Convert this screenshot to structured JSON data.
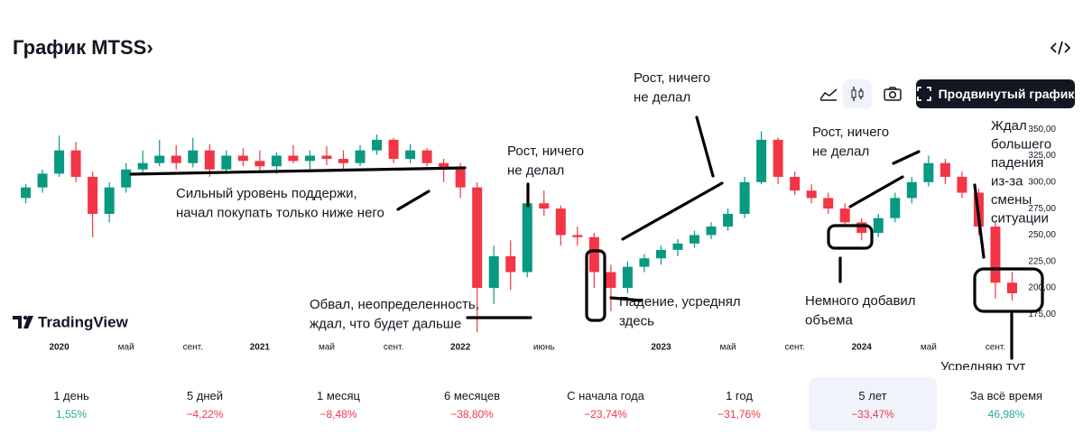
{
  "header": {
    "title": "График MTSS›",
    "button": "Продвинутый график"
  },
  "logo": "TradingView",
  "chart_data": {
    "type": "candlestick",
    "up_color": "#089981",
    "down_color": "#f23645",
    "x": [
      "2019-11",
      "2019-12",
      "2020-01",
      "2020-02",
      "2020-03",
      "2020-04",
      "2020-05",
      "2020-06",
      "2020-07",
      "2020-08",
      "2020-09",
      "2020-10",
      "2020-11",
      "2020-12",
      "2021-01",
      "2021-02",
      "2021-03",
      "2021-04",
      "2021-05",
      "2021-06",
      "2021-07",
      "2021-08",
      "2021-09",
      "2021-10",
      "2021-11",
      "2021-12",
      "2022-01",
      "2022-02",
      "2022-03",
      "2022-04",
      "2022-05",
      "2022-06",
      "2022-07",
      "2022-08",
      "2022-09",
      "2022-10",
      "2022-11",
      "2022-12",
      "2023-01",
      "2023-02",
      "2023-03",
      "2023-04",
      "2023-05",
      "2023-06",
      "2023-07",
      "2023-08",
      "2023-09",
      "2023-10",
      "2023-11",
      "2023-12",
      "2024-01",
      "2024-02",
      "2024-03",
      "2024-04",
      "2024-05",
      "2024-06",
      "2024-07",
      "2024-08",
      "2024-09",
      "2024-10"
    ],
    "open": [
      285,
      295,
      308,
      330,
      305,
      270,
      295,
      312,
      318,
      325,
      318,
      330,
      312,
      325,
      320,
      315,
      325,
      320,
      325,
      322,
      318,
      330,
      340,
      322,
      330,
      318,
      312,
      295,
      200,
      230,
      215,
      280,
      275,
      250,
      248,
      215,
      200,
      220,
      228,
      236,
      242,
      250,
      258,
      270,
      300,
      340,
      305,
      292,
      285,
      275,
      262,
      252,
      266,
      285,
      300,
      318,
      305,
      290,
      258,
      205
    ],
    "high": [
      298,
      312,
      344,
      338,
      310,
      300,
      318,
      330,
      340,
      335,
      342,
      336,
      330,
      332,
      330,
      328,
      335,
      330,
      334,
      330,
      335,
      345,
      342,
      336,
      332,
      322,
      318,
      300,
      240,
      245,
      290,
      292,
      278,
      258,
      252,
      222,
      225,
      232,
      240,
      246,
      254,
      262,
      275,
      305,
      348,
      342,
      310,
      298,
      290,
      280,
      266,
      270,
      290,
      305,
      325,
      322,
      310,
      294,
      262,
      215
    ],
    "low": [
      280,
      290,
      305,
      300,
      248,
      262,
      290,
      308,
      315,
      312,
      314,
      305,
      308,
      315,
      310,
      308,
      318,
      312,
      316,
      312,
      315,
      326,
      318,
      318,
      315,
      300,
      285,
      158,
      185,
      198,
      210,
      268,
      240,
      240,
      200,
      178,
      195,
      215,
      222,
      230,
      238,
      246,
      254,
      266,
      298,
      298,
      288,
      280,
      270,
      258,
      245,
      248,
      262,
      280,
      296,
      298,
      285,
      250,
      190,
      188
    ],
    "close": [
      295,
      308,
      330,
      305,
      270,
      295,
      312,
      318,
      325,
      318,
      330,
      312,
      325,
      320,
      315,
      325,
      320,
      325,
      322,
      318,
      330,
      340,
      322,
      330,
      318,
      312,
      295,
      200,
      230,
      215,
      280,
      275,
      250,
      248,
      215,
      200,
      220,
      228,
      236,
      242,
      250,
      258,
      270,
      300,
      340,
      305,
      292,
      285,
      275,
      262,
      252,
      266,
      285,
      300,
      318,
      305,
      290,
      258,
      205,
      195
    ],
    "xlim": [
      "2019-10",
      "2024-11"
    ],
    "xticks": [
      {
        "value": "2020-01",
        "label": "2020"
      },
      {
        "value": "2020-05",
        "label": "май"
      },
      {
        "value": "2020-09",
        "label": "сент."
      },
      {
        "value": "2021-01",
        "label": "2021"
      },
      {
        "value": "2021-05",
        "label": "май"
      },
      {
        "value": "2021-09",
        "label": "сент."
      },
      {
        "value": "2022-01",
        "label": "2022"
      },
      {
        "value": "2022-06",
        "label": "июнь"
      },
      {
        "value": "2023-01",
        "label": "2023"
      },
      {
        "value": "2023-05",
        "label": "май"
      },
      {
        "value": "2023-09",
        "label": "сент."
      },
      {
        "value": "2024-01",
        "label": "2024"
      },
      {
        "value": "2024-05",
        "label": "май"
      },
      {
        "value": "2024-09",
        "label": "сент."
      }
    ],
    "ylim": [
      160,
      380
    ],
    "yticks": [
      {
        "value": 175,
        "label": "175,00"
      },
      {
        "value": 200,
        "label": "200,00"
      },
      {
        "value": 225,
        "label": "225,00"
      },
      {
        "value": 250,
        "label": "250,00"
      },
      {
        "value": 275,
        "label": "275,00"
      },
      {
        "value": 300,
        "label": "300,00"
      },
      {
        "value": 325,
        "label": "325,00"
      },
      {
        "value": 350,
        "label": "350,00"
      }
    ],
    "grid": false,
    "annotations": [
      {
        "lines": [
          "Сильный уровень поддержи,",
          "начал покупать только ниже него"
        ]
      },
      {
        "lines": [
          "Обвал, неопределенность,",
          "ждал, что будет дальше"
        ]
      },
      {
        "lines": [
          "Рост, ничего",
          "не делал"
        ]
      },
      {
        "lines": [
          "Рост, ничего",
          "не делал"
        ]
      },
      {
        "lines": [
          "Падение, усреднял",
          "здесь"
        ]
      },
      {
        "lines": [
          "Рост, ничего",
          "не делал"
        ]
      },
      {
        "lines": [
          "Немного добавил",
          "объема"
        ]
      },
      {
        "lines": [
          "Ждал",
          "большего",
          "падения",
          "из-за",
          "смены",
          "ситуации"
        ]
      },
      {
        "lines": [
          "Усредняю тут"
        ]
      }
    ]
  },
  "periods": [
    {
      "label": "1 день",
      "change": "1,55%"
    },
    {
      "label": "5 дней",
      "change": "−4,22%"
    },
    {
      "label": "1 месяц",
      "change": "−8,48%"
    },
    {
      "label": "6 месяцев",
      "change": "−38,80%"
    },
    {
      "label": "С начала года",
      "change": "−23,74%"
    },
    {
      "label": "1 год",
      "change": "−31,76%"
    },
    {
      "label": "5 лет",
      "change": "−33,47%",
      "selected": true
    },
    {
      "label": "За всё время",
      "change": "46,98%"
    }
  ]
}
